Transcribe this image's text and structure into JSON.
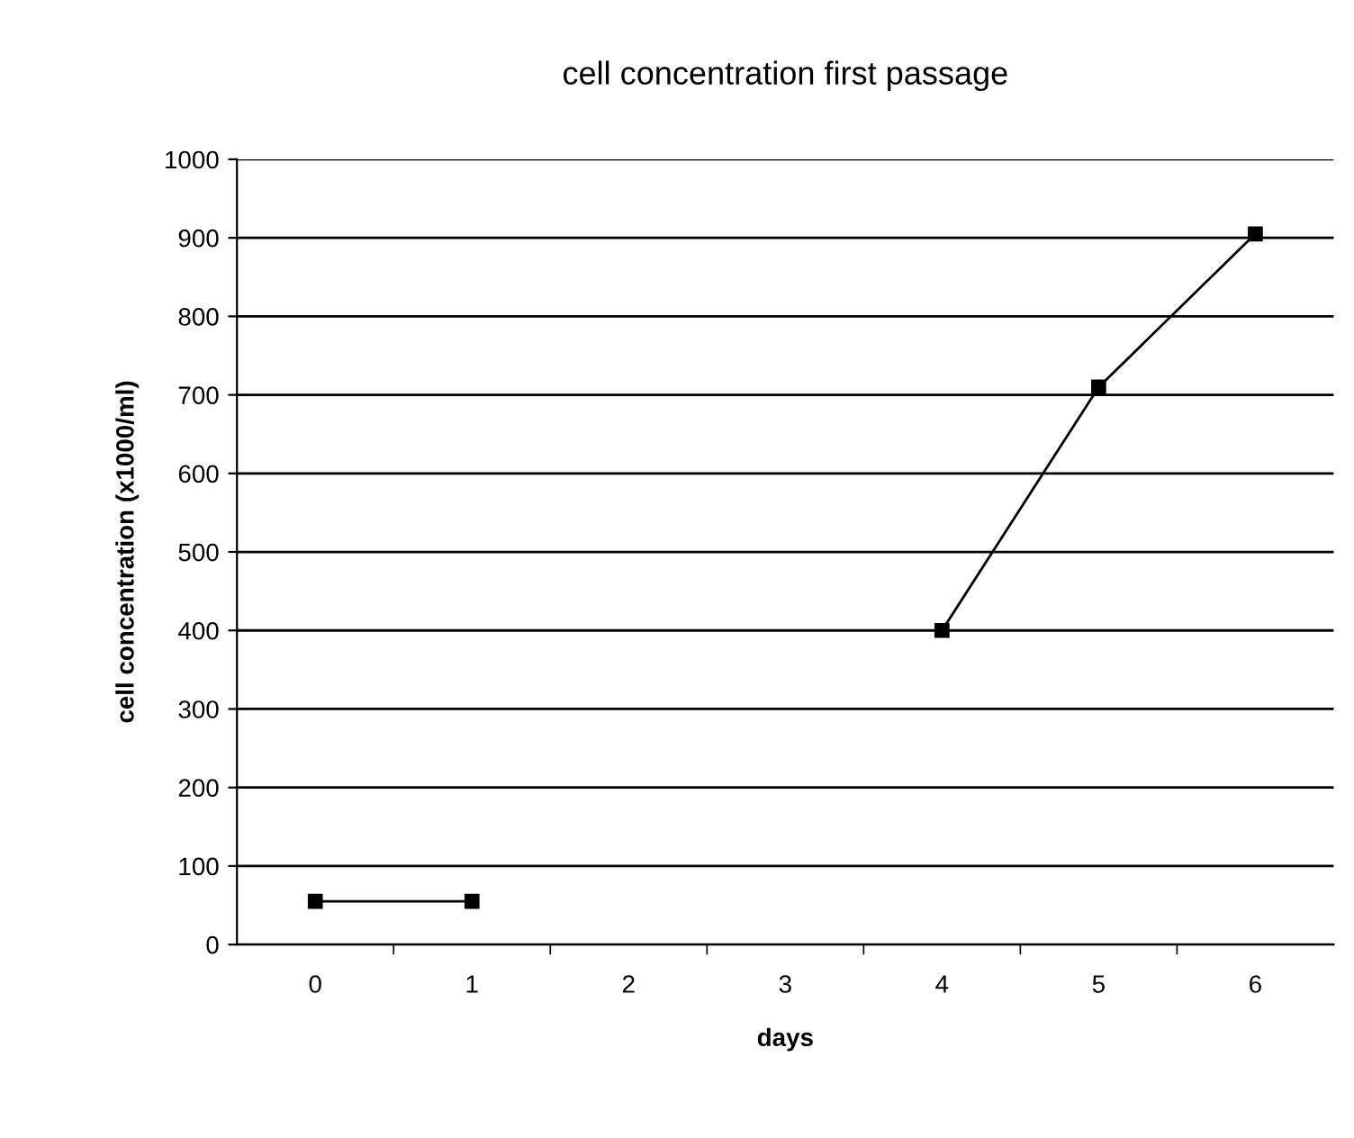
{
  "chart_data": {
    "type": "line",
    "title": "cell concentration first passage",
    "xlabel": "days",
    "ylabel": "cell concentration (x1000/ml)",
    "categories": [
      "0",
      "1",
      "2",
      "3",
      "4",
      "5",
      "6"
    ],
    "series": [
      {
        "color": "#000000",
        "values": [
          55,
          55,
          null,
          null,
          400,
          710,
          905
        ]
      }
    ],
    "ylim": [
      0,
      1000
    ],
    "yticks": [
      0,
      100,
      200,
      300,
      400,
      500,
      600,
      700,
      800,
      900,
      1000
    ],
    "grid": "y",
    "marker": "square",
    "line_style": "solid",
    "legend": false
  }
}
